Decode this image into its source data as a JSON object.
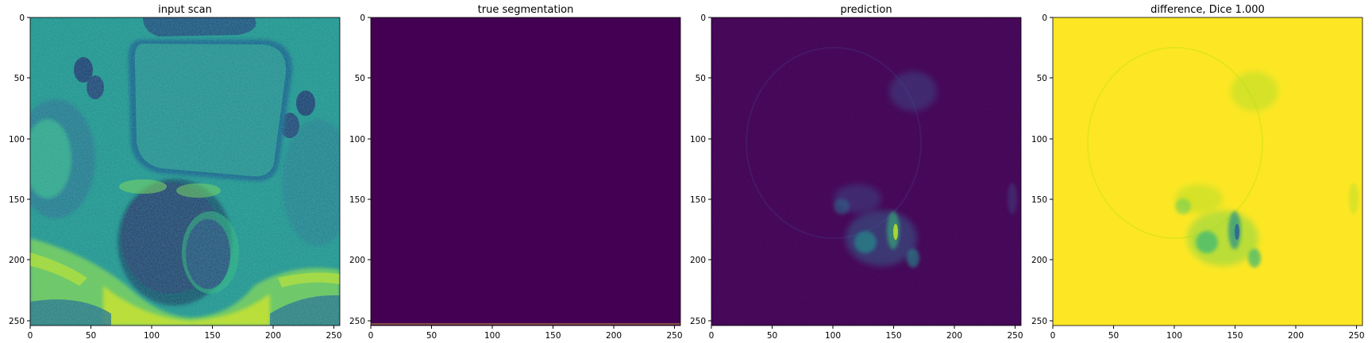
{
  "figure": {
    "panels": [
      {
        "title": "input scan",
        "colormap": "viridis",
        "content": "MRI axial pelvic slice: green-cyan tissue, large square bladder, dark round rectum, bright yellow fat band at bottom",
        "ticks": {
          "x": [
            "0",
            "50",
            "100",
            "150",
            "200",
            "250"
          ],
          "y": [
            "0",
            "50",
            "100",
            "150",
            "200",
            "250"
          ]
        }
      },
      {
        "title": "true segmentation",
        "colormap": "viridis",
        "content": "uniform dark purple field (all zero mask)",
        "ticks": {
          "x": [
            "0",
            "50",
            "100",
            "150",
            "200",
            "250"
          ],
          "y": [
            "0",
            "50",
            "100",
            "150",
            "200",
            "250"
          ]
        }
      },
      {
        "title": "prediction",
        "colormap": "viridis",
        "content": "mostly dark purple with faint blue-green speckles near lower centre",
        "ticks": {
          "x": [
            "0",
            "50",
            "100",
            "150",
            "200",
            "250"
          ],
          "y": [
            "0",
            "50",
            "100",
            "150",
            "200",
            "250"
          ]
        }
      },
      {
        "title": "difference, Dice 1.000",
        "colormap": "viridis",
        "content": "mostly yellow with green-blue speckles near lower centre",
        "ticks": {
          "x": [
            "0",
            "50",
            "100",
            "150",
            "200",
            "250"
          ],
          "y": [
            "0",
            "50",
            "100",
            "150",
            "200",
            "250"
          ]
        }
      }
    ],
    "colors": {
      "viridis_dark": "#440154",
      "viridis_blue": "#31688e",
      "viridis_teal": "#21918c",
      "viridis_green": "#35b779",
      "viridis_yellow": "#fde725"
    }
  }
}
